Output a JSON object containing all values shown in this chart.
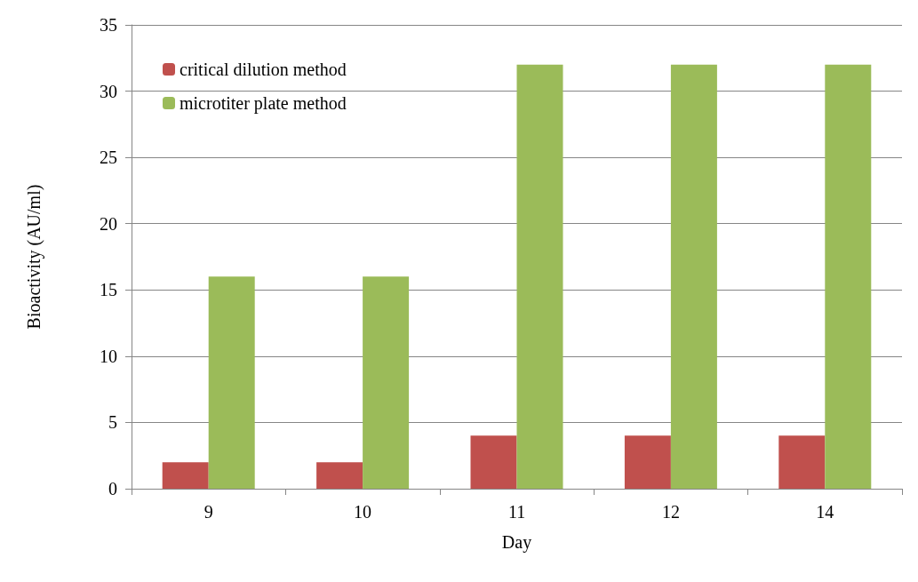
{
  "chart_data": {
    "type": "bar",
    "xlabel": "Day",
    "ylabel": "Bioactivity (AU/ml)",
    "categories": [
      "9",
      "10",
      "11",
      "12",
      "14"
    ],
    "series": [
      {
        "name": "critical dilution method",
        "color": "#c0504d",
        "values": [
          2,
          2,
          4,
          4,
          4
        ]
      },
      {
        "name": "microtiter plate method",
        "color": "#9bbb59",
        "values": [
          16,
          16,
          32,
          32,
          32
        ]
      }
    ],
    "ylim": [
      0,
      35
    ],
    "yticks": [
      0,
      5,
      10,
      15,
      20,
      25,
      30,
      35
    ],
    "grid": "y",
    "legend": "top left"
  }
}
